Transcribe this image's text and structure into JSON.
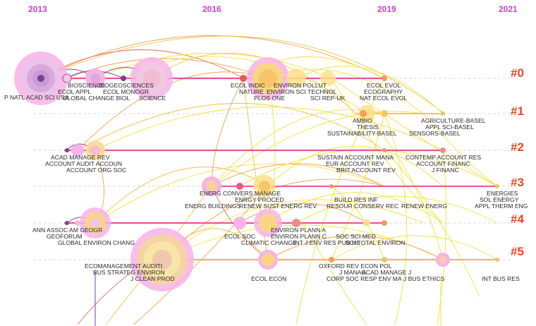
{
  "years": [
    {
      "label": "2013",
      "x": 0
    },
    {
      "label": "2016",
      "x": 0
    },
    {
      "label": "2019",
      "x": 0
    },
    {
      "label": "2021",
      "x": 0
    }
  ],
  "clusters": [
    {
      "id": "#0",
      "labels": [
        "P NATL ACAD SCI USA",
        "BIOSCIENCE",
        "ECOL APPL",
        "GLOBAL CHANGE BIOL",
        "BIOGEOSCIENCES",
        "ECOL MONOGR",
        "SCIENCE",
        "ECOL INDIC",
        "NATURE",
        "ENVIRON POLLUT",
        "ENVIRON SCI TECHNOL",
        "PLOS ONE",
        "SCI REP-UK",
        "ECOL EVOL",
        "ECOGRAPHY",
        "NAT ECOL EVOL"
      ]
    },
    {
      "id": "#1",
      "labels": [
        "AMBIO",
        "THESIS",
        "SUSTAINABILITY-BASEL",
        "SENSORS-BASEL",
        "AGRICULTURE-BASEL",
        "APPL SCI-BASEL"
      ]
    },
    {
      "id": "#2",
      "labels": [
        "ACAD MANAGE REV",
        "ACCOUNT AUDIT ACCOUN",
        "ACCOUNT ORG SOC",
        "SUSTAIN ACCOUNT MANA",
        "EUR ACCOUNT REV",
        "BRIT ACCOUNT REV",
        "CONTEMP ACCOUNT RES",
        "ACCOUNT FINANC",
        "J FINANC"
      ]
    },
    {
      "id": "#3",
      "labels": [
        "ENERG CONVERS MANAGE",
        "ENRGY PROCED",
        "ENERG BUILDINGS",
        "RENEW SUST ENERG REV",
        "BUILD RES INF",
        "RESOUR CONSERV REC",
        "RENEW ENERG",
        "ENERGIES",
        "SOL ENERGY",
        "APPL THERM ENG"
      ]
    },
    {
      "id": "#4",
      "labels": [
        "ANN ASSOC AM GEOGR",
        "GEOFORUM",
        "GLOBAL ENVIRON CHANG",
        "ECOL SOC",
        "ENVIRON PLANN A",
        "ENVIRON PLANN C",
        "CLIMATIC CHANGE",
        "INT J ENV RES PUB HE",
        "SOC SCI MED",
        "SCI TOTAL ENVIRON"
      ]
    },
    {
      "id": "#5",
      "labels": [
        "ECOMANAGEMENT AUDITI",
        "BUS STRATEG ENVIRON",
        "J CLEAN PROD",
        "ECOL ECON",
        "OXFORD REV ECON POL",
        "J MANAG",
        "ACAD MANAGE J",
        "CORP SOC RESP ENV MA",
        "J BUS ETHICS",
        "INT BUS RES"
      ]
    }
  ],
  "colors": {
    "years": "#d63bd6",
    "cluster_labels": "#e8461e",
    "timeline": "#f0529a",
    "dashed": "#c8c8c8",
    "link_yellow": "#f2e23a",
    "link_orange": "#f3a24a",
    "link_purple": "#8e3a9a",
    "node_halo": "#f7b3e8"
  }
}
